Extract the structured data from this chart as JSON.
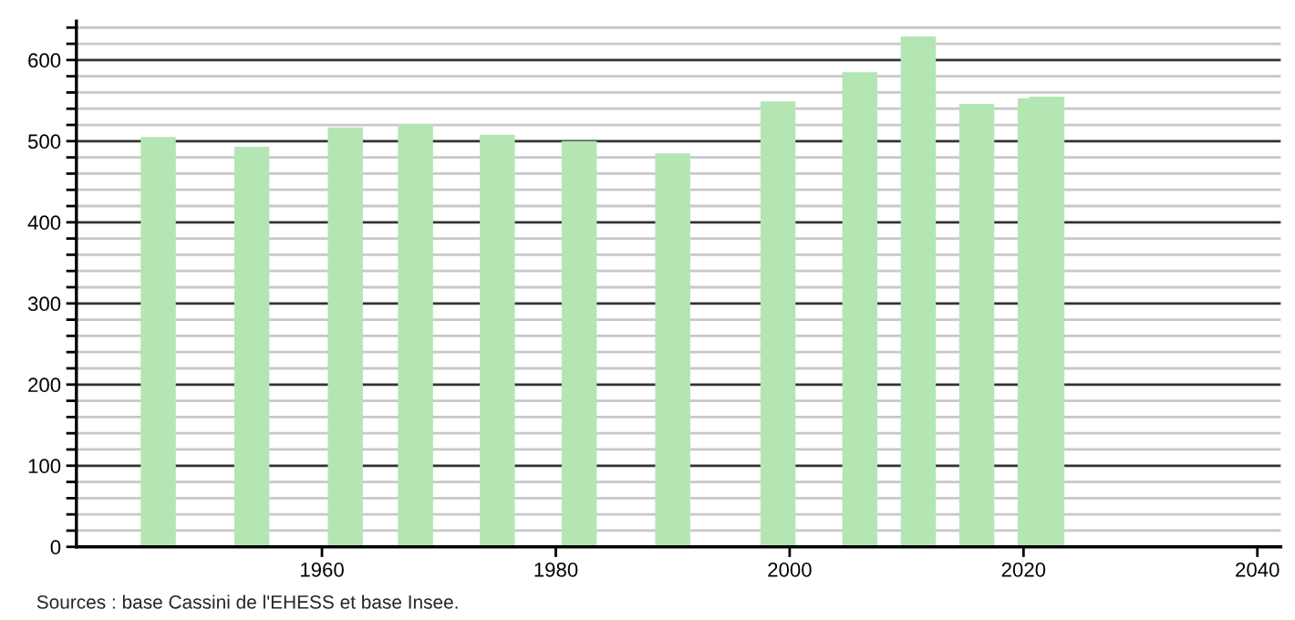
{
  "chart_data": {
    "type": "bar",
    "x": [
      1946,
      1954,
      1962,
      1968,
      1975,
      1982,
      1990,
      1999,
      2006,
      2011,
      2016,
      2021,
      2022
    ],
    "values": [
      505,
      493,
      517,
      521,
      508,
      500,
      485,
      549,
      585,
      629,
      546,
      553,
      555
    ],
    "color": "#b3e6b3",
    "xlim": [
      1939,
      2042
    ],
    "xticks": [
      1960,
      1980,
      2000,
      2020,
      2040
    ],
    "ylim": [
      0,
      648
    ],
    "yticks": [
      0,
      {
        "value": 20,
        "label": null
      },
      {
        "value": 40,
        "label": null
      },
      {
        "value": 60,
        "label": null
      },
      {
        "value": 80,
        "label": null
      },
      100,
      {
        "value": 120,
        "label": null
      },
      {
        "value": 140,
        "label": null
      },
      {
        "value": 160,
        "label": null
      },
      {
        "value": 180,
        "label": null
      },
      200,
      {
        "value": 220,
        "label": null
      },
      {
        "value": 240,
        "label": null
      },
      {
        "value": 260,
        "label": null
      },
      {
        "value": 280,
        "label": null
      },
      300,
      {
        "value": 320,
        "label": null
      },
      {
        "value": 340,
        "label": null
      },
      {
        "value": 360,
        "label": null
      },
      {
        "value": 380,
        "label": null
      },
      400,
      {
        "value": 420,
        "label": null
      },
      {
        "value": 440,
        "label": null
      },
      {
        "value": 460,
        "label": null
      },
      {
        "value": 480,
        "label": null
      },
      500,
      {
        "value": 520,
        "label": null
      },
      {
        "value": 540,
        "label": null
      },
      {
        "value": 560,
        "label": null
      },
      {
        "value": 580,
        "label": null
      },
      600,
      {
        "value": 620,
        "label": null
      },
      {
        "value": 640,
        "label": null
      }
    ],
    "grid": "y",
    "annotations": [
      "Sources : base Cassini de l'EHESS et base Insee."
    ]
  }
}
